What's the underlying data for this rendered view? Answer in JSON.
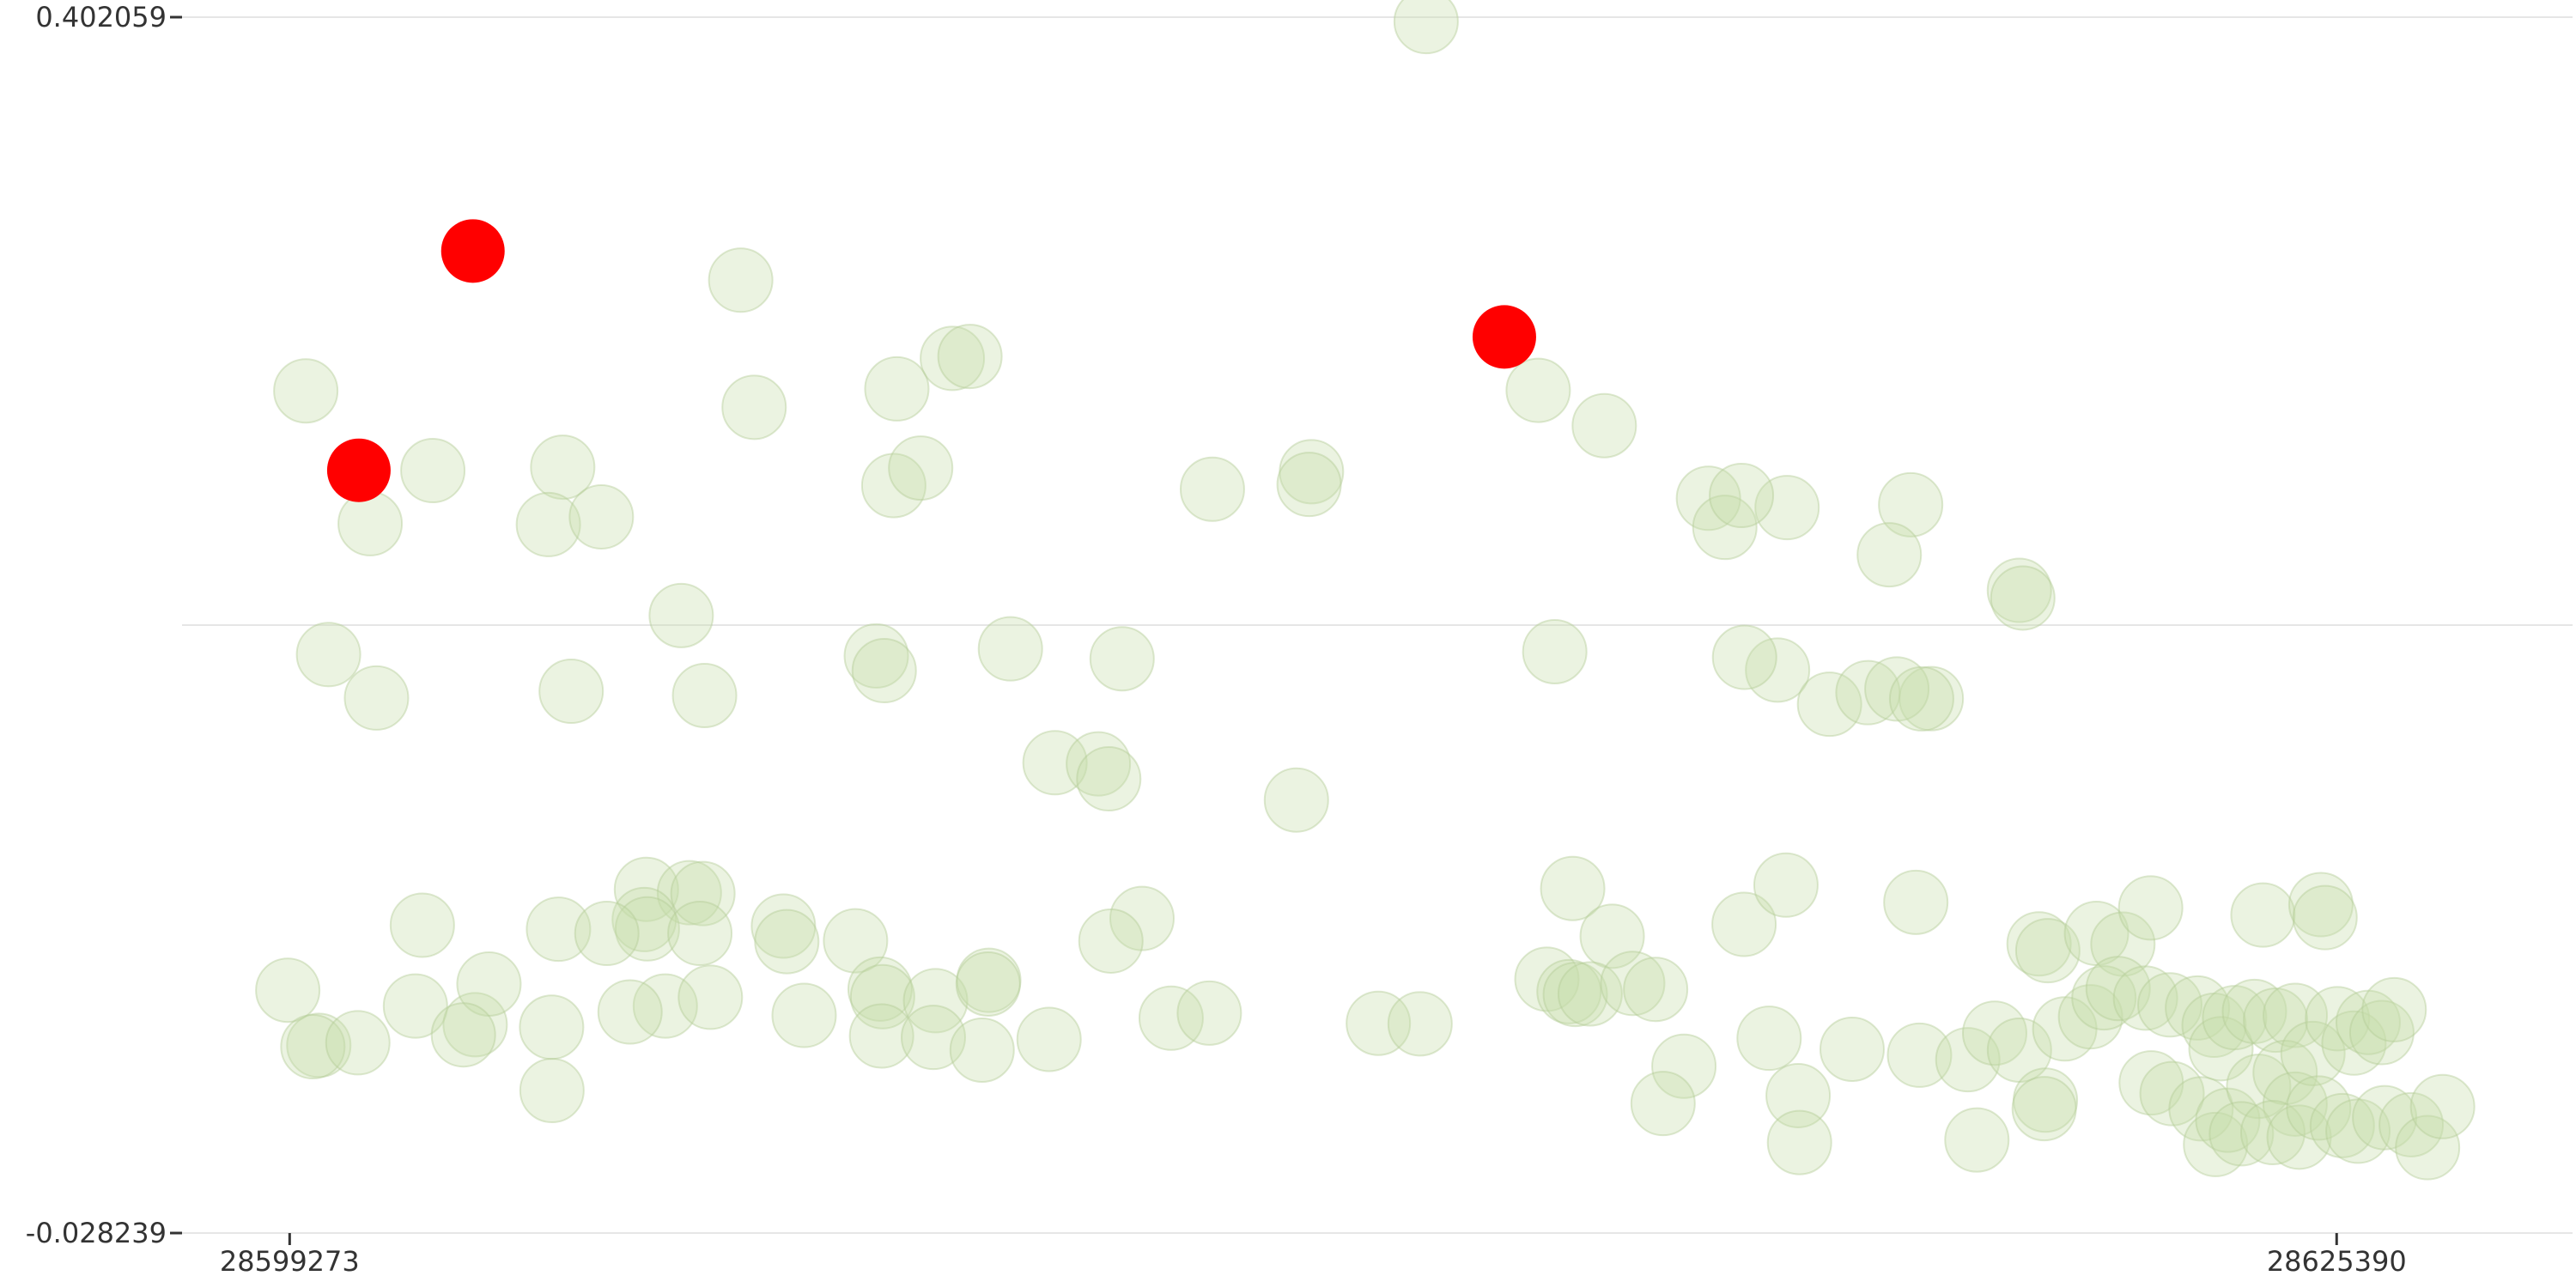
{
  "chart_data": {
    "type": "scatter",
    "title": "",
    "xlabel": "",
    "ylabel": "",
    "xlim": [
      28597900,
      28628400
    ],
    "ylim": [
      -0.028239,
      0.402059
    ],
    "x_ticks": [
      {
        "value": 28599273,
        "label": "28599273"
      },
      {
        "value": 28625390,
        "label": "28625390"
      }
    ],
    "y_ticks": [
      {
        "value": 0.402059,
        "label": "0.402059"
      },
      {
        "value": -0.028239,
        "label": "-0.028239"
      }
    ],
    "gridlines_y": [
      0.402059,
      0.18691,
      -0.028239
    ],
    "grid": true,
    "series": [
      {
        "role": "background",
        "color": "#c5dcaa",
        "opacity": 0.35,
        "points": [
          [
            28613773,
            0.4005
          ],
          [
            28599479,
            0.2698
          ],
          [
            28600300,
            0.2228
          ],
          [
            28601100,
            0.2416
          ],
          [
            28602757,
            0.2428
          ],
          [
            28602574,
            0.2225
          ],
          [
            28603250,
            0.2252
          ],
          [
            28605028,
            0.309
          ],
          [
            28605199,
            0.264
          ],
          [
            28607020,
            0.2705
          ],
          [
            28607728,
            0.2813
          ],
          [
            28607953,
            0.282
          ],
          [
            28606981,
            0.2363
          ],
          [
            28607324,
            0.2425
          ],
          [
            28611046,
            0.235
          ],
          [
            28612310,
            0.2412
          ],
          [
            28612280,
            0.2367
          ],
          [
            28615203,
            0.27
          ],
          [
            28616046,
            0.2575
          ],
          [
            28617375,
            0.2318
          ],
          [
            28618378,
            0.2285
          ],
          [
            28617584,
            0.2215
          ],
          [
            28617796,
            0.2328
          ],
          [
            28619955,
            0.2295
          ],
          [
            28619682,
            0.2118
          ],
          [
            28621342,
            0.1992
          ],
          [
            28621386,
            0.1965
          ],
          [
            28604269,
            0.1903
          ],
          [
            28599769,
            0.1765
          ],
          [
            28600381,
            0.1611
          ],
          [
            28602865,
            0.1635
          ],
          [
            28604567,
            0.162
          ],
          [
            28606758,
            0.176
          ],
          [
            28606859,
            0.1708
          ],
          [
            28608469,
            0.1785
          ],
          [
            28609894,
            0.175
          ],
          [
            28615414,
            0.1775
          ],
          [
            28618257,
            0.171
          ],
          [
            28617836,
            0.1755
          ],
          [
            28618920,
            0.1589
          ],
          [
            28619410,
            0.163
          ],
          [
            28620218,
            0.1609
          ],
          [
            28619779,
            0.1643
          ],
          [
            28620095,
            0.1608
          ],
          [
            28609038,
            0.1382
          ],
          [
            28609591,
            0.1378
          ],
          [
            28609724,
            0.1325
          ],
          [
            28612118,
            0.125
          ],
          [
            28603825,
            0.0934
          ],
          [
            28604373,
            0.0922
          ],
          [
            28604546,
            0.0919
          ],
          [
            28600966,
            0.0807
          ],
          [
            28602703,
            0.0793
          ],
          [
            28603797,
            0.0827
          ],
          [
            28603837,
            0.0794
          ],
          [
            28604507,
            0.0778
          ],
          [
            28605573,
            0.0804
          ],
          [
            28605616,
            0.0749
          ],
          [
            28603320,
            0.0778
          ],
          [
            28606493,
            0.0752
          ],
          [
            28610148,
            0.0831
          ],
          [
            28609751,
            0.0751
          ],
          [
            28615643,
            0.0937
          ],
          [
            28616147,
            0.0768
          ],
          [
            28617829,
            0.081
          ],
          [
            28618364,
            0.0949
          ],
          [
            28620021,
            0.0888
          ],
          [
            28621593,
            0.0741
          ],
          [
            28621705,
            0.0717
          ],
          [
            28622326,
            0.0778
          ],
          [
            28622663,
            0.074
          ],
          [
            28623017,
            0.0868
          ],
          [
            28624450,
            0.0843
          ],
          [
            28625189,
            0.088
          ],
          [
            28625242,
            0.0834
          ],
          [
            28599249,
            0.0577
          ],
          [
            28600878,
            0.0521
          ],
          [
            28601640,
            0.0455
          ],
          [
            28601816,
            0.0599
          ],
          [
            28604066,
            0.0521
          ],
          [
            28604641,
            0.0552
          ],
          [
            28606806,
            0.0581
          ],
          [
            28606838,
            0.0554
          ],
          [
            28607514,
            0.054
          ],
          [
            28608193,
            0.0612
          ],
          [
            28608185,
            0.0599
          ],
          [
            28606825,
            0.0415
          ],
          [
            28607486,
            0.041
          ],
          [
            28608108,
            0.0365
          ],
          [
            28608962,
            0.0403
          ],
          [
            28603616,
            0.05
          ],
          [
            28599645,
            0.0382
          ],
          [
            28599569,
            0.0377
          ],
          [
            28600143,
            0.0391
          ],
          [
            28601490,
            0.0419
          ],
          [
            28602615,
            0.0446
          ],
          [
            28602620,
            0.0222
          ],
          [
            28605837,
            0.0488
          ],
          [
            28610520,
            0.0478
          ],
          [
            28611007,
            0.0496
          ],
          [
            28613163,
            0.046
          ],
          [
            28613696,
            0.0458
          ],
          [
            28615314,
            0.0616
          ],
          [
            28615596,
            0.0572
          ],
          [
            28615676,
            0.0562
          ],
          [
            28615866,
            0.0564
          ],
          [
            28616409,
            0.0601
          ],
          [
            28616701,
            0.058
          ],
          [
            28617062,
            0.0308
          ],
          [
            28616796,
            0.0176
          ],
          [
            28618149,
            0.0407
          ],
          [
            28618519,
            0.0204
          ],
          [
            28618537,
            0.0038
          ],
          [
            28619208,
            0.0368
          ],
          [
            28620068,
            0.0347
          ],
          [
            28620800,
            0.0047
          ],
          [
            28620684,
            0.0331
          ],
          [
            28621027,
            0.0425
          ],
          [
            28621343,
            0.0365
          ],
          [
            28621674,
            0.0188
          ],
          [
            28621659,
            0.0158
          ],
          [
            28621921,
            0.044
          ],
          [
            28622250,
            0.0483
          ],
          [
            28622421,
            0.055
          ],
          [
            28622602,
            0.0583
          ],
          [
            28622951,
            0.0549
          ],
          [
            28623262,
            0.0525
          ],
          [
            28623614,
            0.0514
          ],
          [
            28623826,
            0.0453
          ],
          [
            28623914,
            0.037
          ],
          [
            28624088,
            0.048
          ],
          [
            28624341,
            0.0502
          ],
          [
            28624610,
            0.0471
          ],
          [
            28624862,
            0.0488
          ],
          [
            28623024,
            0.0249
          ],
          [
            28623290,
            0.0211
          ],
          [
            28623660,
            0.0157
          ],
          [
            28623845,
            0.0031
          ],
          [
            28624001,
            0.0117
          ],
          [
            28624395,
            0.0237
          ],
          [
            28624733,
            0.0286
          ],
          [
            28624860,
            0.0174
          ],
          [
            28625088,
            0.0353
          ],
          [
            28625400,
            0.0476
          ],
          [
            28625611,
            0.039
          ],
          [
            28625792,
            0.0463
          ],
          [
            28625967,
            0.0427
          ],
          [
            28626124,
            0.0508
          ],
          [
            28624175,
            0.0069
          ],
          [
            28624576,
            0.0073
          ],
          [
            28624911,
            0.0057
          ],
          [
            28625161,
            0.016
          ],
          [
            28625462,
            0.0098
          ],
          [
            28625662,
            0.0078
          ],
          [
            28626002,
            0.0126
          ],
          [
            28626341,
            0.0101
          ],
          [
            28626550,
            0.002
          ],
          [
            28626742,
            0.0165
          ]
        ]
      },
      {
        "role": "highlight",
        "color": "#ff0000",
        "opacity": 1,
        "points": [
          [
            28601611,
            0.3193
          ],
          [
            28600156,
            0.2417
          ],
          [
            28614771,
            0.2889
          ]
        ]
      }
    ]
  }
}
